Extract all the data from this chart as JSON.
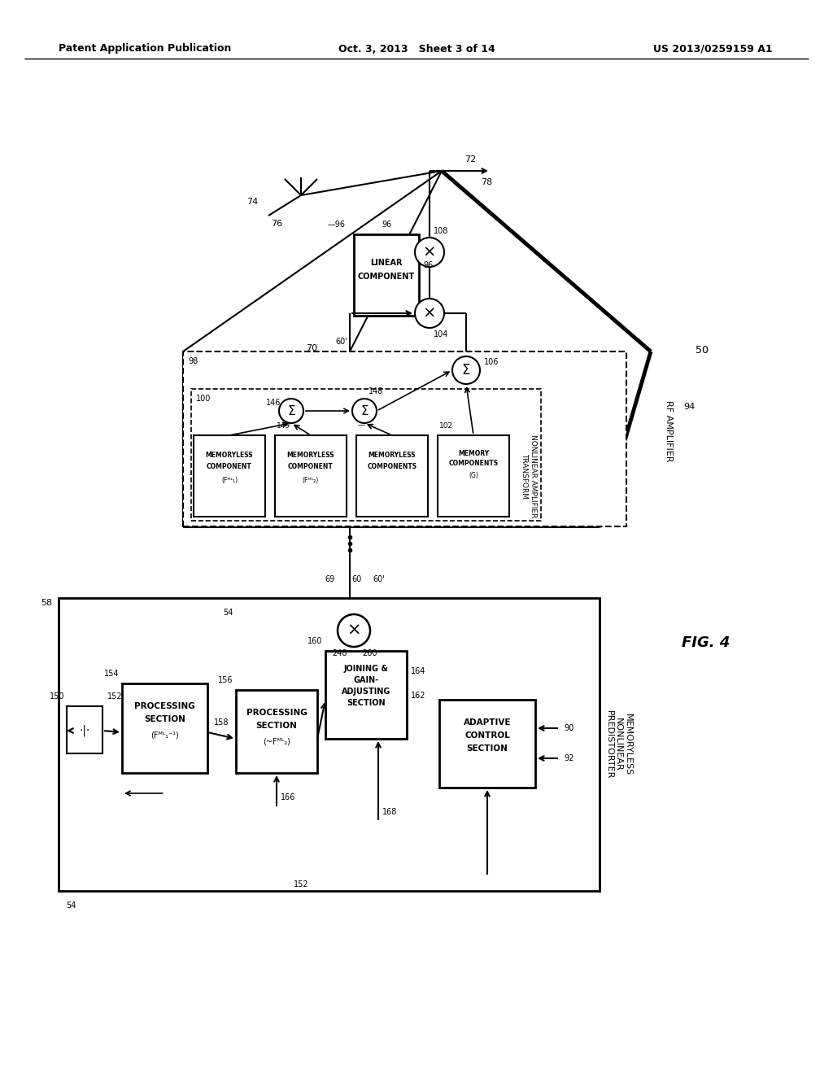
{
  "header_left": "Patent Application Publication",
  "header_center": "Oct. 3, 2013   Sheet 3 of 14",
  "header_right": "US 2013/0259159 A1",
  "fig_label": "FIG. 4"
}
